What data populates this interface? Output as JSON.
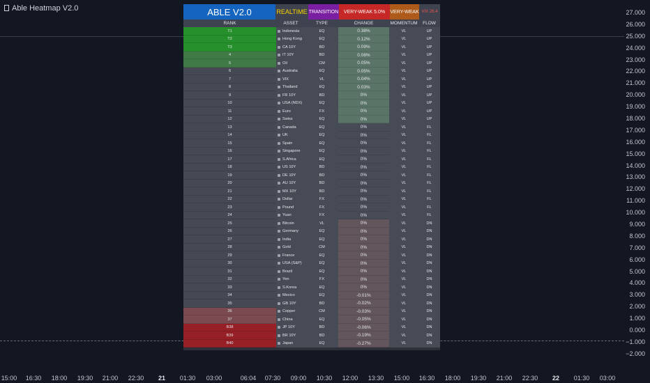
{
  "app_title": "Able Heatmap V2.0",
  "y_axis": [
    "27.000",
    "26.000",
    "25.000",
    "24.000",
    "23.000",
    "22.000",
    "21.000",
    "20.000",
    "19.000",
    "18.000",
    "17.000",
    "16.000",
    "15.000",
    "14.000",
    "13.000",
    "12.000",
    "11.000",
    "10.000",
    "9.000",
    "8.000",
    "7.000",
    "6.000",
    "5.000",
    "4.000",
    "3.000",
    "2.000",
    "1.000",
    "0.000",
    "−1.000",
    "−2.000"
  ],
  "x_axis": [
    {
      "label": "15:00",
      "bold": false
    },
    {
      "label": "16:30",
      "bold": false
    },
    {
      "label": "18:00",
      "bold": false
    },
    {
      "label": "19:30",
      "bold": false
    },
    {
      "label": "21:00",
      "bold": false
    },
    {
      "label": "22:30",
      "bold": false
    },
    {
      "label": "21",
      "bold": true
    },
    {
      "label": "01:30",
      "bold": false
    },
    {
      "label": "03:00",
      "bold": false
    },
    {
      "label": "06:04",
      "bold": false
    },
    {
      "label": "07:30",
      "bold": false
    },
    {
      "label": "09:00",
      "bold": false
    },
    {
      "label": "10:30",
      "bold": false
    },
    {
      "label": "12:00",
      "bold": false
    },
    {
      "label": "13:30",
      "bold": false
    },
    {
      "label": "15:00",
      "bold": false
    },
    {
      "label": "16:30",
      "bold": false
    },
    {
      "label": "18:00",
      "bold": false
    },
    {
      "label": "19:30",
      "bold": false
    },
    {
      "label": "21:00",
      "bold": false
    },
    {
      "label": "22:30",
      "bold": false
    },
    {
      "label": "22",
      "bold": true
    },
    {
      "label": "01:30",
      "bold": false
    },
    {
      "label": "03:00",
      "bold": false
    }
  ],
  "heatmap": {
    "title": "ABLE V2.0",
    "mode": "REALTIME",
    "regime": "TRANSITION",
    "strength": "VERY-WEAK 5.0%",
    "momentum_state": "VERY-WEAK",
    "vix": "VIX 26.4",
    "columns": [
      "RANK",
      "ASSET",
      "TYPE",
      "CHANGE",
      "MOMENTUM",
      "FLOW"
    ],
    "colors": {
      "rank_top": "#26902d",
      "rank_mid": "#3f7a47",
      "rank_neutral": "#454954",
      "rank_weak": "#7a4a50",
      "rank_bottom": "#962025",
      "change_up": "#5a7468",
      "change_neutral": "#474b56",
      "change_down": "#62555b"
    },
    "rows": [
      {
        "rank": "T1",
        "flag": "Indonesia flag",
        "asset": "Indonesia",
        "type": "EQ",
        "change": "0.38%",
        "momentum": "VL",
        "flow": "UP",
        "rank_style": "top",
        "change_style": "up"
      },
      {
        "rank": "T2",
        "flag": "Hong Kong flag",
        "asset": "Hong Kong",
        "type": "EQ",
        "change": "0.12%",
        "momentum": "VL",
        "flow": "UP",
        "rank_style": "top",
        "change_style": "up"
      },
      {
        "rank": "T3",
        "flag": "Canada flag",
        "asset": "CA 10Y",
        "type": "BD",
        "change": "0.09%",
        "momentum": "VL",
        "flow": "UP",
        "rank_style": "top",
        "change_style": "up"
      },
      {
        "rank": "4",
        "flag": "Italy flag",
        "asset": "IT 10Y",
        "type": "BD",
        "change": "0.08%",
        "momentum": "VL",
        "flow": "UP",
        "rank_style": "mid",
        "change_style": "up"
      },
      {
        "rank": "5",
        "flag": "Oil icon",
        "asset": "Oil",
        "type": "CM",
        "change": "0.05%",
        "momentum": "VL",
        "flow": "UP",
        "rank_style": "mid",
        "change_style": "up"
      },
      {
        "rank": "6",
        "flag": "Australia flag",
        "asset": "Australia",
        "type": "EQ",
        "change": "0.05%",
        "momentum": "VL",
        "flow": "UP",
        "rank_style": "neutral",
        "change_style": "up"
      },
      {
        "rank": "7",
        "flag": "VIX icon",
        "asset": "VIX",
        "type": "VL",
        "change": "0.04%",
        "momentum": "VL",
        "flow": "UP",
        "rank_style": "neutral",
        "change_style": "up"
      },
      {
        "rank": "8",
        "flag": "Thailand flag",
        "asset": "Thailand",
        "type": "EQ",
        "change": "0.03%",
        "momentum": "VL",
        "flow": "UP",
        "rank_style": "neutral",
        "change_style": "up"
      },
      {
        "rank": "9",
        "flag": "France flag",
        "asset": "FR 10Y",
        "type": "BD",
        "change": "0%",
        "momentum": "VL",
        "flow": "UP",
        "rank_style": "neutral",
        "change_style": "up"
      },
      {
        "rank": "10",
        "flag": "USA flag",
        "asset": "USA (NDX)",
        "type": "EQ",
        "change": "0%",
        "momentum": "VL",
        "flow": "UP",
        "rank_style": "neutral",
        "change_style": "up"
      },
      {
        "rank": "11",
        "flag": "EU flag",
        "asset": "Euro",
        "type": "FX",
        "change": "0%",
        "momentum": "VL",
        "flow": "UP",
        "rank_style": "neutral",
        "change_style": "up"
      },
      {
        "rank": "12",
        "flag": "Swiss flag",
        "asset": "Swiss",
        "type": "EQ",
        "change": "0%",
        "momentum": "VL",
        "flow": "UP",
        "rank_style": "neutral",
        "change_style": "up"
      },
      {
        "rank": "13",
        "flag": "Canada flag",
        "asset": "Canada",
        "type": "EQ",
        "change": "0%",
        "momentum": "VL",
        "flow": "FL",
        "rank_style": "neutral",
        "change_style": "neutral"
      },
      {
        "rank": "14",
        "flag": "UK flag",
        "asset": "UK",
        "type": "EQ",
        "change": "0%",
        "momentum": "VL",
        "flow": "FL",
        "rank_style": "neutral",
        "change_style": "neutral"
      },
      {
        "rank": "15",
        "flag": "Spain flag",
        "asset": "Spain",
        "type": "EQ",
        "change": "0%",
        "momentum": "VL",
        "flow": "FL",
        "rank_style": "neutral",
        "change_style": "neutral"
      },
      {
        "rank": "16",
        "flag": "Singapore flag",
        "asset": "Singapore",
        "type": "EQ",
        "change": "0%",
        "momentum": "VL",
        "flow": "FL",
        "rank_style": "neutral",
        "change_style": "neutral"
      },
      {
        "rank": "17",
        "flag": "South Africa flag",
        "asset": "S.Africa",
        "type": "EQ",
        "change": "0%",
        "momentum": "VL",
        "flow": "FL",
        "rank_style": "neutral",
        "change_style": "neutral"
      },
      {
        "rank": "18",
        "flag": "USA flag",
        "asset": "US 10Y",
        "type": "BD",
        "change": "0%",
        "momentum": "VL",
        "flow": "FL",
        "rank_style": "neutral",
        "change_style": "neutral"
      },
      {
        "rank": "19",
        "flag": "Germany flag",
        "asset": "DE 10Y",
        "type": "BD",
        "change": "0%",
        "momentum": "VL",
        "flow": "FL",
        "rank_style": "neutral",
        "change_style": "neutral"
      },
      {
        "rank": "20",
        "flag": "Australia flag",
        "asset": "AU 10Y",
        "type": "BD",
        "change": "0%",
        "momentum": "VL",
        "flow": "FL",
        "rank_style": "neutral",
        "change_style": "neutral"
      },
      {
        "rank": "21",
        "flag": "Mexico flag",
        "asset": "MX 10Y",
        "type": "BD",
        "change": "0%",
        "momentum": "VL",
        "flow": "FL",
        "rank_style": "neutral",
        "change_style": "neutral"
      },
      {
        "rank": "22",
        "flag": "Dollar icon",
        "asset": "Dollar",
        "type": "FX",
        "change": "0%",
        "momentum": "VL",
        "flow": "FL",
        "rank_style": "neutral",
        "change_style": "neutral"
      },
      {
        "rank": "23",
        "flag": "UK flag",
        "asset": "Pound",
        "type": "FX",
        "change": "0%",
        "momentum": "VL",
        "flow": "FL",
        "rank_style": "neutral",
        "change_style": "neutral"
      },
      {
        "rank": "24",
        "flag": "China flag",
        "asset": "Yuan",
        "type": "FX",
        "change": "0%",
        "momentum": "VL",
        "flow": "FL",
        "rank_style": "neutral",
        "change_style": "neutral"
      },
      {
        "rank": "25",
        "flag": "Bitcoin icon",
        "asset": "Bitcoin",
        "type": "VL",
        "change": "0%",
        "momentum": "VL",
        "flow": "DN",
        "rank_style": "neutral",
        "change_style": "down"
      },
      {
        "rank": "26",
        "flag": "Germany flag",
        "asset": "Germany",
        "type": "EQ",
        "change": "0%",
        "momentum": "VL",
        "flow": "DN",
        "rank_style": "neutral",
        "change_style": "down"
      },
      {
        "rank": "27",
        "flag": "India flag",
        "asset": "India",
        "type": "EQ",
        "change": "0%",
        "momentum": "VL",
        "flow": "DN",
        "rank_style": "neutral",
        "change_style": "down"
      },
      {
        "rank": "28",
        "flag": "Gold icon",
        "asset": "Gold",
        "type": "CM",
        "change": "0%",
        "momentum": "VL",
        "flow": "DN",
        "rank_style": "neutral",
        "change_style": "down"
      },
      {
        "rank": "29",
        "flag": "France flag",
        "asset": "France",
        "type": "EQ",
        "change": "0%",
        "momentum": "VL",
        "flow": "DN",
        "rank_style": "neutral",
        "change_style": "down"
      },
      {
        "rank": "30",
        "flag": "USA flag",
        "asset": "USA (S&P)",
        "type": "EQ",
        "change": "0%",
        "momentum": "VL",
        "flow": "DN",
        "rank_style": "neutral",
        "change_style": "down"
      },
      {
        "rank": "31",
        "flag": "Brazil flag",
        "asset": "Brazil",
        "type": "EQ",
        "change": "0%",
        "momentum": "VL",
        "flow": "DN",
        "rank_style": "neutral",
        "change_style": "down"
      },
      {
        "rank": "32",
        "flag": "Japan flag",
        "asset": "Yen",
        "type": "FX",
        "change": "0%",
        "momentum": "VL",
        "flow": "DN",
        "rank_style": "neutral",
        "change_style": "down"
      },
      {
        "rank": "33",
        "flag": "South Korea flag",
        "asset": "S.Korea",
        "type": "EQ",
        "change": "0%",
        "momentum": "VL",
        "flow": "DN",
        "rank_style": "neutral",
        "change_style": "down"
      },
      {
        "rank": "34",
        "flag": "Mexico flag",
        "asset": "Mexico",
        "type": "EQ",
        "change": "-0.01%",
        "momentum": "VL",
        "flow": "DN",
        "rank_style": "neutral",
        "change_style": "down"
      },
      {
        "rank": "35",
        "flag": "UK flag",
        "asset": "GB 10Y",
        "type": "BD",
        "change": "-0.02%",
        "momentum": "VL",
        "flow": "DN",
        "rank_style": "neutral",
        "change_style": "down"
      },
      {
        "rank": "36",
        "flag": "Copper icon",
        "asset": "Copper",
        "type": "CM",
        "change": "-0.03%",
        "momentum": "VL",
        "flow": "DN",
        "rank_style": "weak",
        "change_style": "down"
      },
      {
        "rank": "37",
        "flag": "China flag",
        "asset": "China",
        "type": "EQ",
        "change": "-0.05%",
        "momentum": "VL",
        "flow": "DN",
        "rank_style": "weak",
        "change_style": "down"
      },
      {
        "rank": "B38",
        "flag": "Japan flag",
        "asset": "JP 10Y",
        "type": "BD",
        "change": "-0.06%",
        "momentum": "VL",
        "flow": "DN",
        "rank_style": "bottom",
        "change_style": "down"
      },
      {
        "rank": "B39",
        "flag": "Brazil flag",
        "asset": "BR 10Y",
        "type": "BD",
        "change": "-0.19%",
        "momentum": "VL",
        "flow": "DN",
        "rank_style": "bottom",
        "change_style": "down"
      },
      {
        "rank": "B40",
        "flag": "Japan flag",
        "asset": "Japan",
        "type": "EQ",
        "change": "-0.27%",
        "momentum": "VL",
        "flow": "DN",
        "rank_style": "bottom",
        "change_style": "down"
      }
    ]
  }
}
